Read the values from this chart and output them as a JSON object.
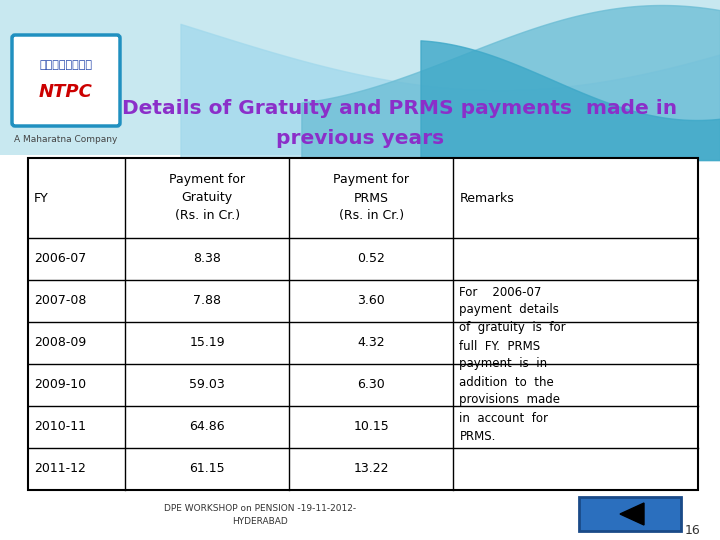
{
  "title_line1": "Details of Gratuity and PRMS payments  made in",
  "title_line2": "previous years",
  "title_color": "#8B2FC9",
  "bg_color": "#FFFFFF",
  "table_headers": [
    "FY",
    "Payment for\nGratuity\n   (Rs. in Cr.)",
    "Payment for\nPRMS\n   (Rs. in Cr.)",
    "Remarks"
  ],
  "rows": [
    [
      "2006-07",
      "8.38",
      "0.52"
    ],
    [
      "2007-08",
      "7.88",
      "3.60"
    ],
    [
      "2008-09",
      "15.19",
      "4.32"
    ],
    [
      "2009-10",
      "59.03",
      "6.30"
    ],
    [
      "2010-11",
      "64.86",
      "10.15"
    ],
    [
      "2011-12",
      "61.15",
      "13.22"
    ]
  ],
  "remarks_text": "For    2006-07\npayment  details\nof  gratuity  is  for\nfull  FY.  PRMS\npayment  is  in\naddition  to  the\nprovisions  made\nin  account  for\nPRMS.",
  "footer_text": "DPE WORKSHOP on PENSION -19-11-2012-\nHYDERABAD",
  "footer_page": "16",
  "wave_bg": "#C8E8F0",
  "wave_mid": "#7DC8DC",
  "wave_dark": "#3BA8C4",
  "ntpc_border": "#2090C0",
  "ntpc_hindi_color": "#2244AA",
  "ntpc_red": "#CC0000",
  "ntpc_subtext": "#444444",
  "cell_text_color": "#000000",
  "cell_font_size": 9,
  "header_font_size": 9,
  "title_font_size": 14.5,
  "btn_color": "#2B6FBE",
  "btn_border": "#1A4A88"
}
